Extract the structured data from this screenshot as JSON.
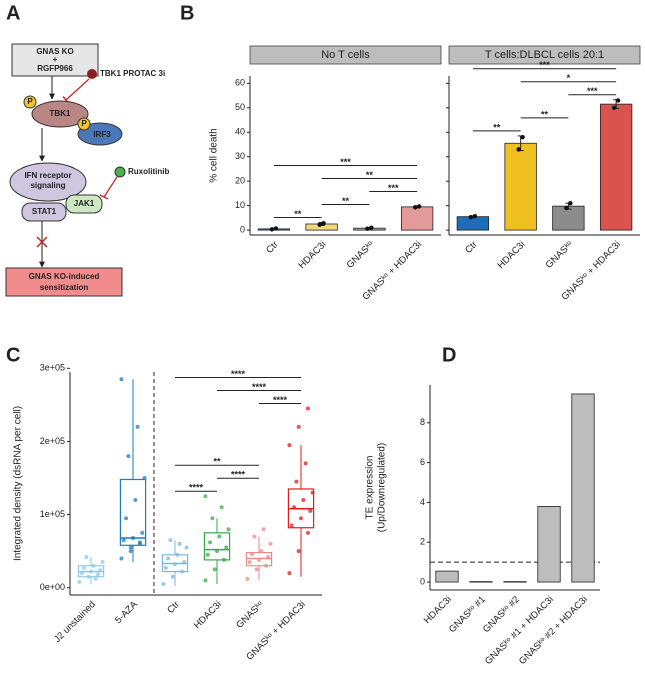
{
  "panel_labels": [
    "A",
    "B",
    "C",
    "D"
  ],
  "diagram": {
    "input": [
      "GNAS KO",
      "+",
      "RGFP966"
    ],
    "inhibitor_1": "TBK1 PROTAC 3i",
    "kinase": "TBK1",
    "phospho": "P",
    "factor": "IRF3",
    "signaling": [
      "IFN receptor",
      "signaling"
    ],
    "jak": "JAK1",
    "stat": "STAT1",
    "inhibitor_2": "Ruxolitinib",
    "outcome": [
      "GNAS KO-induced",
      "sensitization"
    ]
  },
  "chart_data": [
    {
      "type": "bar",
      "ylabel": "% cell death",
      "ylim": [
        -2,
        63
      ],
      "yticks": [
        0,
        10,
        20,
        30,
        40,
        50,
        60
      ],
      "categories": [
        "Ctr",
        "HDAC3i",
        "GNASᵏᵒ",
        "GNASᵏᵒ + HDAC3i"
      ],
      "facets": [
        {
          "title": "No T cells",
          "colors": [
            "#3b78b8",
            "#f3d77e",
            "#a8a8a8",
            "#e49a9a"
          ],
          "values": [
            0.5,
            2.5,
            0.8,
            9.5
          ],
          "errors": [
            0.3,
            0.6,
            0.3,
            0.4
          ],
          "points": [
            [
              0.3,
              0.7
            ],
            [
              2.2,
              2.8
            ],
            [
              0.6,
              1.0
            ],
            [
              9.3,
              9.7
            ]
          ],
          "significance": [
            {
              "from": 0,
              "to": 1,
              "label": "**"
            },
            {
              "from": 1,
              "to": 2,
              "label": "**"
            },
            {
              "from": 2,
              "to": 3,
              "label": "***"
            },
            {
              "from": 1,
              "to": 3,
              "label": "**"
            },
            {
              "from": 0,
              "to": 3,
              "label": "***"
            }
          ]
        },
        {
          "title": "T cells:DLBCL cells 20:1",
          "colors": [
            "#1f6db5",
            "#f0c020",
            "#8c8c8c",
            "#d9534f"
          ],
          "values": [
            5.5,
            35.5,
            9.8,
            51.5
          ],
          "errors": [
            0.3,
            3.0,
            1.2,
            1.8
          ],
          "points": [
            [
              5.3,
              5.7
            ],
            [
              33,
              38
            ],
            [
              9,
              11
            ],
            [
              50,
              53
            ]
          ],
          "significance": [
            {
              "from": 0,
              "to": 1,
              "label": "**"
            },
            {
              "from": 1,
              "to": 2,
              "label": "**"
            },
            {
              "from": 2,
              "to": 3,
              "label": "***"
            },
            {
              "from": 1,
              "to": 3,
              "label": "*"
            },
            {
              "from": 0,
              "to": 3,
              "label": "***"
            }
          ]
        }
      ]
    },
    {
      "type": "box",
      "ylabel": "Integrated density (dsRNA per cell)",
      "ylim": [
        -10000,
        295000
      ],
      "yticks": [
        {
          "value": 0,
          "label": "0e+00"
        },
        {
          "value": 100000,
          "label": "1e+05"
        },
        {
          "value": 200000,
          "label": "2e+05"
        },
        {
          "value": 300000,
          "label": "3e+05"
        }
      ],
      "divider_after": 1,
      "groups": [
        {
          "name": "J2 unstained",
          "color": "#8ec9e8",
          "whisker_low": 5000,
          "q1": 15000,
          "median": 22000,
          "q3": 30000,
          "whisker_high": 42000,
          "points": [
            8000,
            15000,
            18000,
            20000,
            22000,
            24000,
            27000,
            30000,
            35000,
            42000,
            12000
          ]
        },
        {
          "name": "5-AZA",
          "color": "#1a7dc0",
          "whisker_low": 35000,
          "q1": 58000,
          "median": 68000,
          "q3": 148000,
          "whisker_high": 285000,
          "points": [
            40000,
            55000,
            60000,
            65000,
            68000,
            75000,
            95000,
            120000,
            150000,
            180000,
            220000,
            285000,
            50000,
            62000
          ]
        },
        {
          "name": "Ctr",
          "color": "#7fb8dc",
          "whisker_low": 2000,
          "q1": 22000,
          "median": 33000,
          "q3": 45000,
          "whisker_high": 65000,
          "points": [
            5000,
            15000,
            22000,
            27000,
            32000,
            35000,
            40000,
            45000,
            55000,
            65000,
            60000
          ]
        },
        {
          "name": "HDAC3i",
          "color": "#3aa848",
          "whisker_low": 5000,
          "q1": 38000,
          "median": 52000,
          "q3": 75000,
          "whisker_high": 95000,
          "points": [
            10000,
            25000,
            38000,
            45000,
            50000,
            55000,
            62000,
            70000,
            80000,
            95000,
            110000,
            125000
          ]
        },
        {
          "name": "GNASᵏᵒ",
          "color": "#ec8a8a",
          "whisker_low": 10000,
          "q1": 30000,
          "median": 40000,
          "q3": 48000,
          "whisker_high": 70000,
          "points": [
            12000,
            25000,
            30000,
            35000,
            38000,
            42000,
            46000,
            50000,
            60000,
            70000,
            80000
          ]
        },
        {
          "name": "GNASᵏᵒ + HDAC3i",
          "color": "#e41a1c",
          "whisker_low": 15000,
          "q1": 82000,
          "median": 108000,
          "q3": 135000,
          "whisker_high": 195000,
          "points": [
            20000,
            50000,
            75000,
            85000,
            95000,
            105000,
            110000,
            120000,
            130000,
            145000,
            170000,
            195000,
            220000,
            245000
          ]
        }
      ],
      "significance": [
        {
          "from": 2,
          "to": 3,
          "label": "****"
        },
        {
          "from": 3,
          "to": 4,
          "label": "****"
        },
        {
          "from": 2,
          "to": 4,
          "label": "**"
        },
        {
          "from": 4,
          "to": 5,
          "label": "****"
        },
        {
          "from": 3,
          "to": 5,
          "label": "****"
        },
        {
          "from": 2,
          "to": 5,
          "label": "****"
        }
      ]
    },
    {
      "type": "bar",
      "ylabel": [
        "TE expression",
        "(Up/Downregulated)"
      ],
      "ylim": [
        -0.4,
        9.9
      ],
      "yticks": [
        0,
        2,
        4,
        6,
        8
      ],
      "categories": [
        "HDAC3i",
        "GNASᵏᵒ #1",
        "GNASᵏᵒ #2",
        "GNASᵏᵒ #1 + HDAC3i",
        "GNASᵏᵒ #2 + HDAC3i"
      ],
      "values": [
        0.55,
        0.02,
        0.02,
        3.8,
        9.45
      ],
      "color": "#bdbdbd",
      "reference_line": 1
    }
  ]
}
